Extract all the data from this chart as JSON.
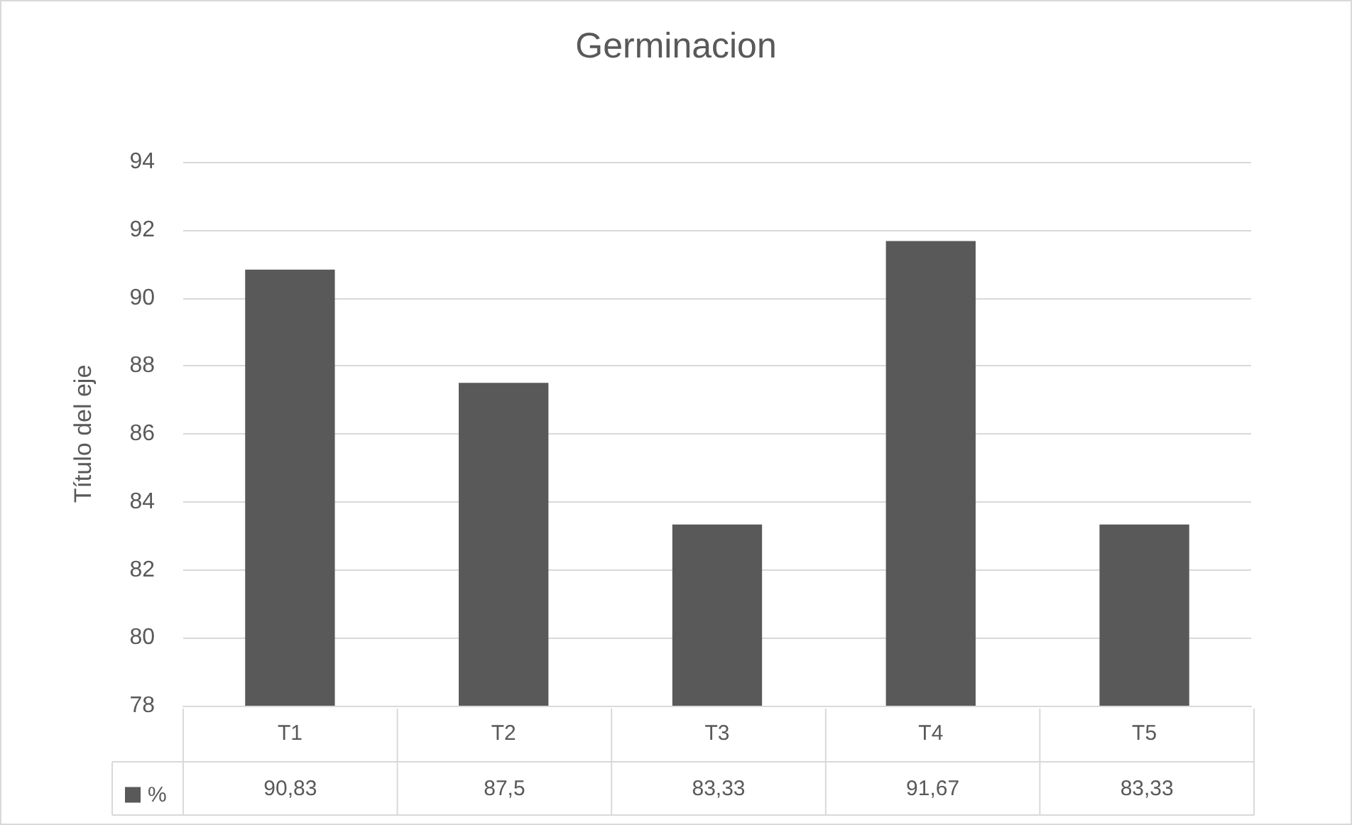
{
  "chart_data": {
    "type": "bar",
    "title": "Germinacion",
    "ylabel": "Título del eje",
    "categories": [
      "T1",
      "T2",
      "T3",
      "T4",
      "T5"
    ],
    "series": [
      {
        "name": "%",
        "color": "#595959",
        "values": [
          90.83,
          87.5,
          83.33,
          91.67,
          83.33
        ],
        "value_labels": [
          "90,83",
          "87,5",
          "83,33",
          "91,67",
          "83,33"
        ]
      }
    ],
    "ylim": [
      78,
      94
    ],
    "yticks": [
      78,
      80,
      82,
      84,
      86,
      88,
      90,
      92,
      94
    ],
    "grid": "y",
    "legend": "bottom left"
  }
}
